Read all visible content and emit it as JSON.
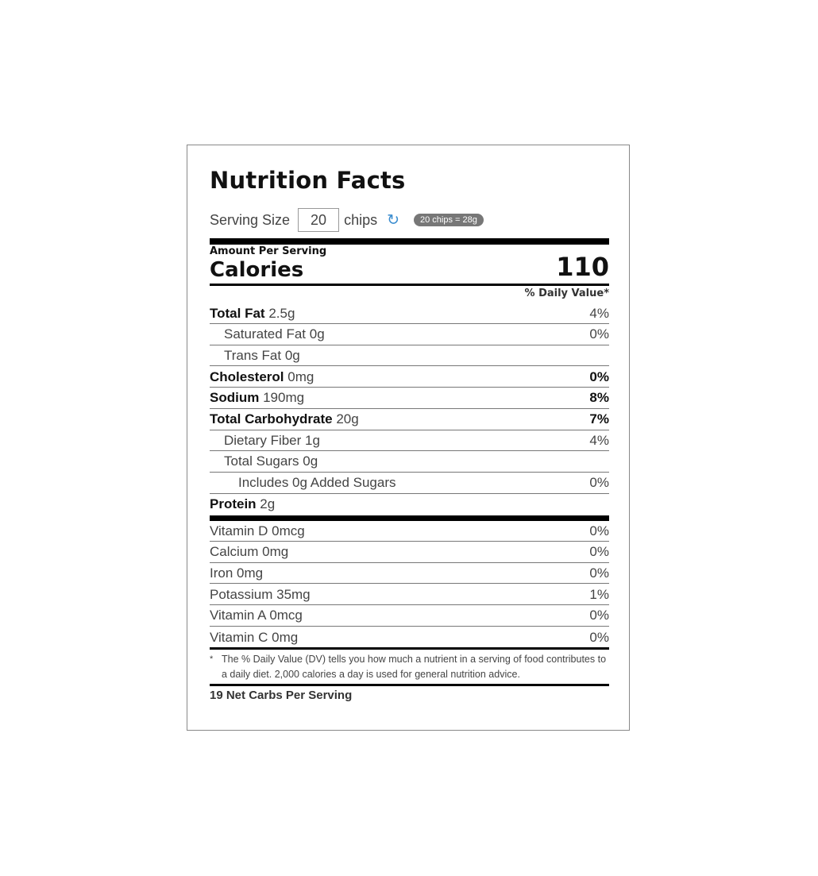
{
  "title": "Nutrition Facts",
  "serving": {
    "label": "Serving Size",
    "value": "20",
    "unit": "chips",
    "equivalence": "20 chips = 28g",
    "refresh_icon": "refresh-icon"
  },
  "amount_per_serving": "Amount Per Serving",
  "calories": {
    "label": "Calories",
    "value": "110"
  },
  "daily_value_header": "% Daily Value*",
  "nutrients": [
    {
      "name": "Total Fat",
      "amount": "2.5g",
      "dv": "4%"
    },
    {
      "name": "Saturated Fat",
      "amount": "0g",
      "dv": "0%"
    },
    {
      "name": "Trans Fat",
      "amount": "0g",
      "dv": ""
    },
    {
      "name": "Cholesterol",
      "amount": "0mg",
      "dv": "0%"
    },
    {
      "name": "Sodium",
      "amount": "190mg",
      "dv": "8%"
    },
    {
      "name": "Total Carbohydrate",
      "amount": "20g",
      "dv": "7%"
    },
    {
      "name": "Dietary Fiber",
      "amount": "1g",
      "dv": "4%"
    },
    {
      "name": "Total Sugars",
      "amount": "0g",
      "dv": ""
    },
    {
      "name": "Includes 0g Added Sugars",
      "amount": "",
      "dv": "0%"
    },
    {
      "name": "Protein",
      "amount": "2g",
      "dv": ""
    }
  ],
  "vitamins": [
    {
      "name": "Vitamin D",
      "amount": "0mcg",
      "dv": "0%"
    },
    {
      "name": "Calcium",
      "amount": "0mg",
      "dv": "0%"
    },
    {
      "name": "Iron",
      "amount": "0mg",
      "dv": "0%"
    },
    {
      "name": "Potassium",
      "amount": "35mg",
      "dv": "1%"
    },
    {
      "name": "Vitamin A",
      "amount": "0mcg",
      "dv": "0%"
    },
    {
      "name": "Vitamin C",
      "amount": "0mg",
      "dv": "0%"
    }
  ],
  "footnote": {
    "marker": "*",
    "text": "The % Daily Value (DV) tells you how much a nutrient in a serving of food contributes to a daily diet. 2,000 calories a day is used for general nutrition advice."
  },
  "net_carbs": "19 Net Carbs Per Serving",
  "colors": {
    "accent": "#3a8ccf",
    "pill": "#777777"
  }
}
